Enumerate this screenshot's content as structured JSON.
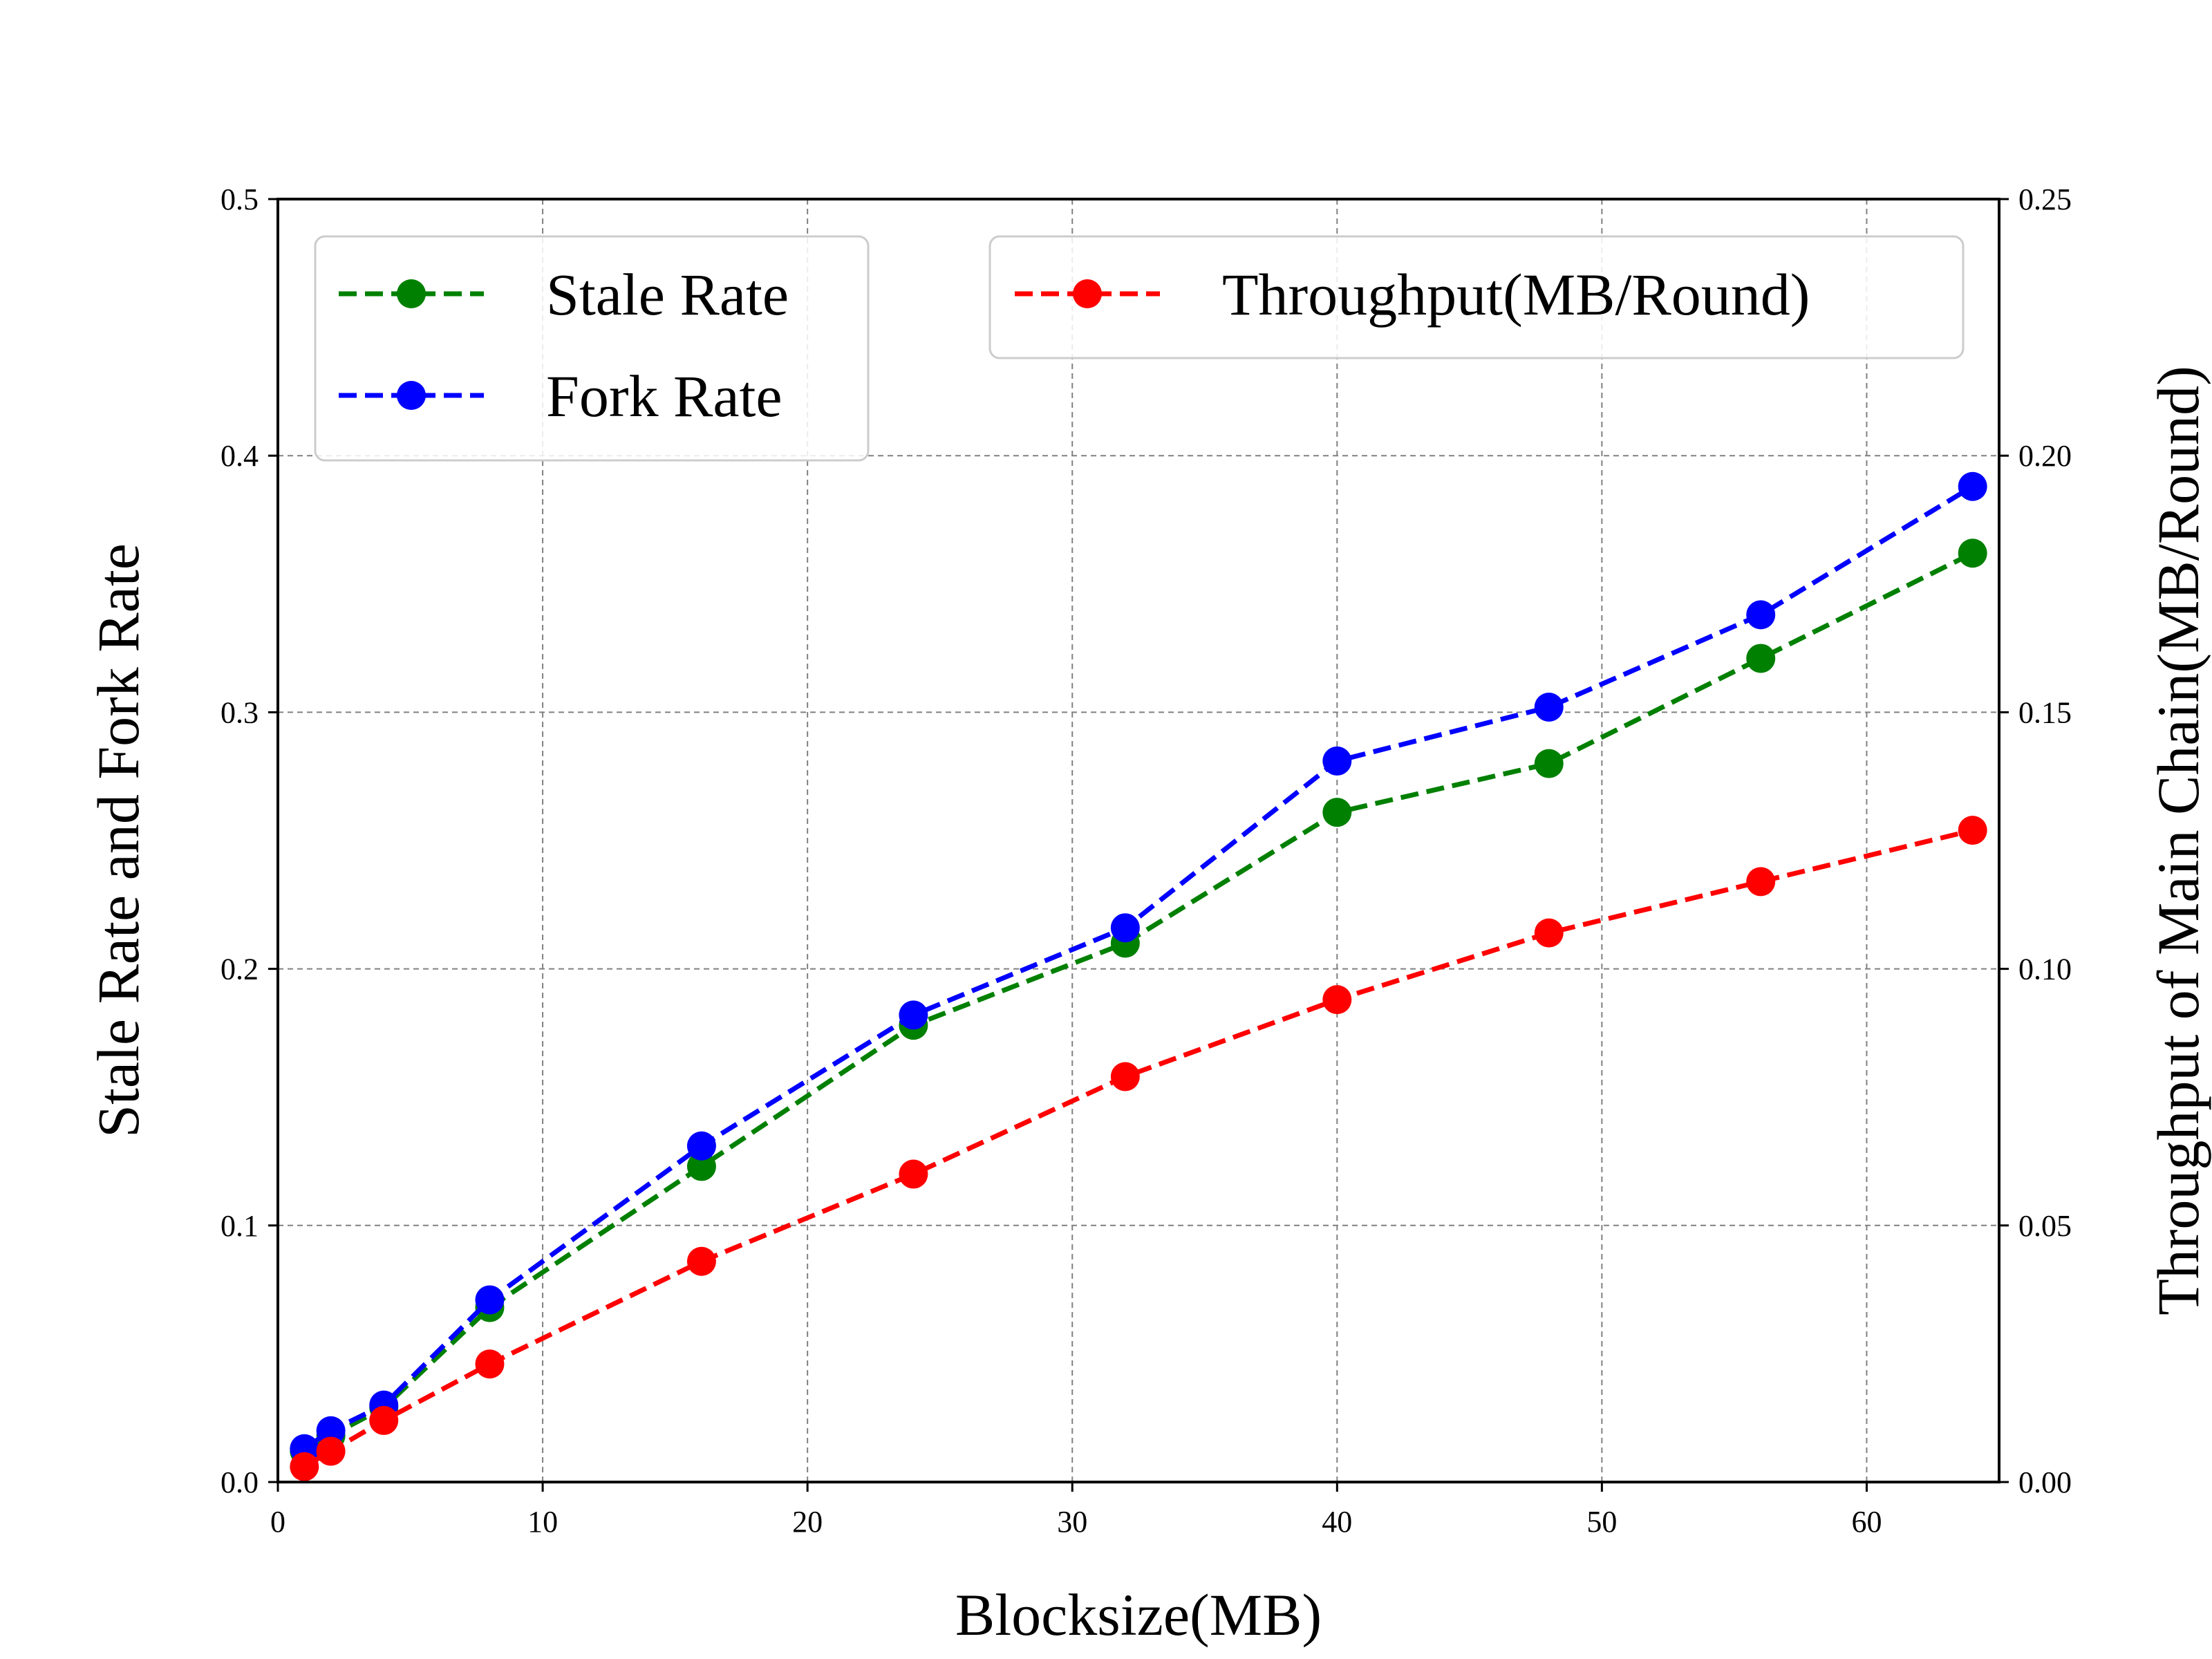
{
  "chart_data": {
    "type": "line",
    "xlabel": "Blocksize(MB)",
    "ylabel": "Stale Rate and Fork Rate",
    "y2label": "Throughput of Main Chain(MB/Round)",
    "x": [
      1,
      2,
      4,
      8,
      16,
      24,
      32,
      40,
      48,
      56,
      64
    ],
    "xlim": [
      0,
      65
    ],
    "ylim": [
      0,
      0.5
    ],
    "y2lim": [
      0,
      0.25
    ],
    "xticks": [
      "0",
      "10",
      "20",
      "30",
      "40",
      "50",
      "60"
    ],
    "yticks": [
      "0.0",
      "0.1",
      "0.2",
      "0.3",
      "0.4",
      "0.5"
    ],
    "y2ticks": [
      "0.00",
      "0.05",
      "0.10",
      "0.15",
      "0.20",
      "0.25"
    ],
    "grid": true,
    "series": [
      {
        "name": "Stale Rate",
        "axis": "left",
        "color": "#008000",
        "values": [
          0.012,
          0.018,
          0.029,
          0.068,
          0.123,
          0.178,
          0.21,
          0.261,
          0.28,
          0.321,
          0.362
        ]
      },
      {
        "name": "Fork Rate",
        "axis": "left",
        "color": "#0000ff",
        "values": [
          0.013,
          0.02,
          0.03,
          0.071,
          0.131,
          0.182,
          0.216,
          0.281,
          0.302,
          0.338,
          0.388
        ]
      },
      {
        "name": "Throughput(MB/Round)",
        "axis": "right",
        "color": "#ff0000",
        "values": [
          0.003,
          0.006,
          0.012,
          0.023,
          0.043,
          0.06,
          0.079,
          0.094,
          0.107,
          0.117,
          0.127
        ]
      }
    ],
    "legends": [
      {
        "placement": "top-left",
        "entries": [
          "Stale Rate",
          "Fork Rate"
        ]
      },
      {
        "placement": "top-right",
        "entries": [
          "Throughput(MB/Round)"
        ]
      }
    ]
  }
}
